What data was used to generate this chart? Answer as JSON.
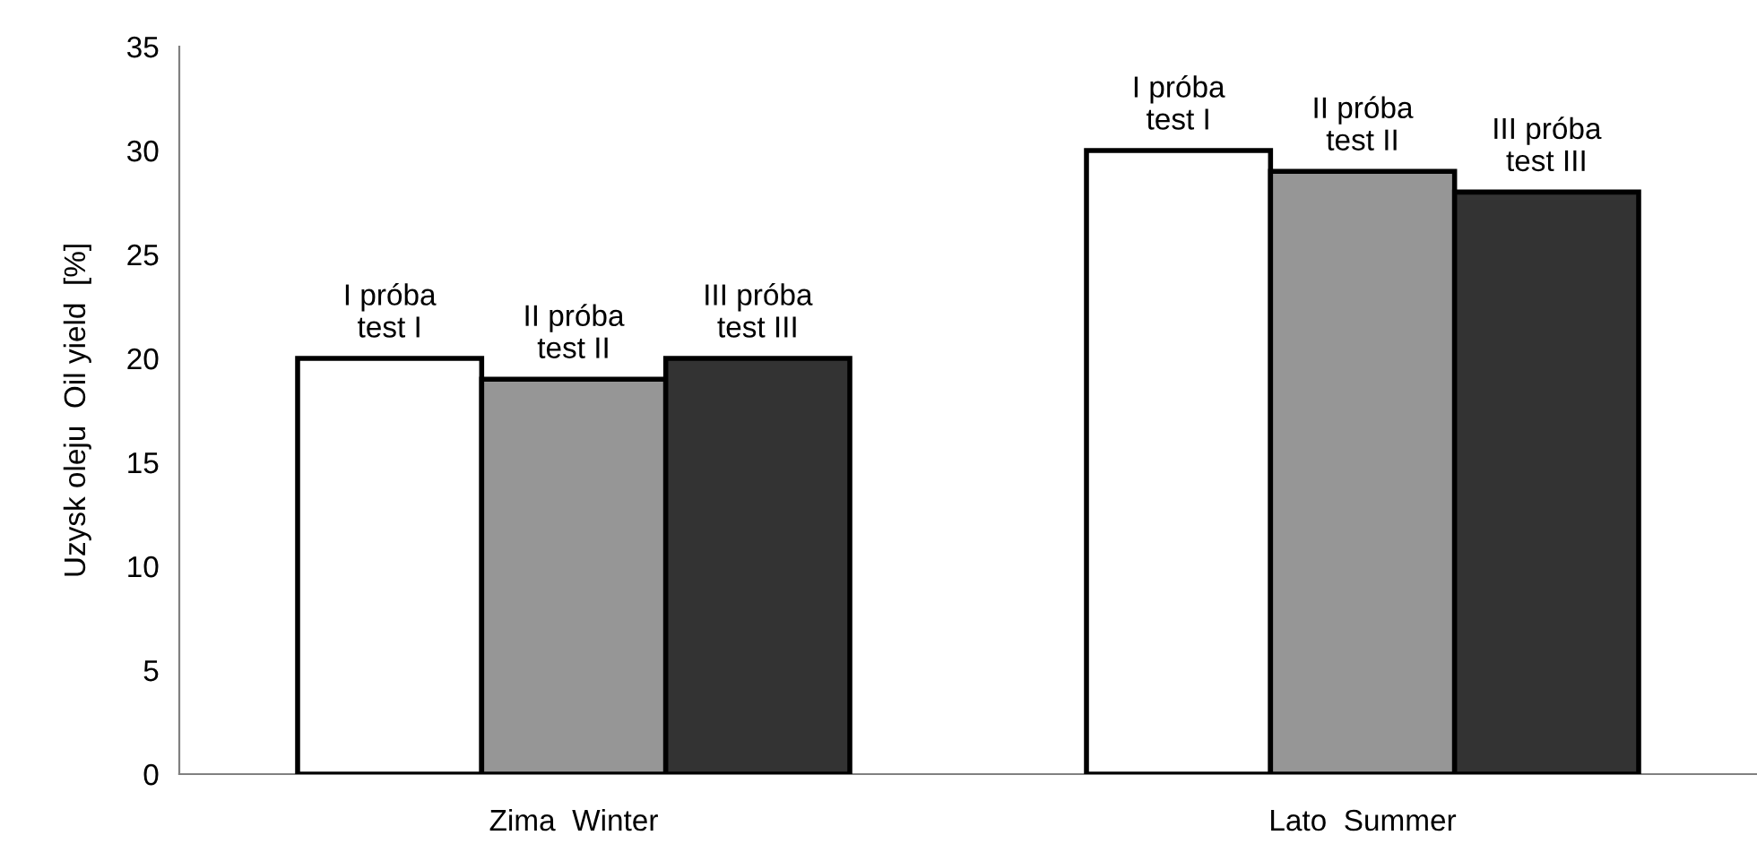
{
  "chart_data": {
    "type": "bar",
    "ylabel": "Uzysk oleju  Oil yield  [%]",
    "categories": [
      "Zima  Winter",
      "Lato  Summer"
    ],
    "series": [
      {
        "name": "I próba\ntest I",
        "color": "#ffffff",
        "values": [
          20,
          30
        ]
      },
      {
        "name": "II próba\ntest II",
        "color": "#969696",
        "values": [
          19,
          29
        ]
      },
      {
        "name": "III próba\ntest III",
        "color": "#333333",
        "values": [
          20,
          28
        ]
      }
    ],
    "ylim": [
      0,
      35
    ],
    "yticks": [
      0,
      5,
      10,
      15,
      20,
      25,
      30,
      35
    ],
    "grid": false,
    "legend": false
  }
}
